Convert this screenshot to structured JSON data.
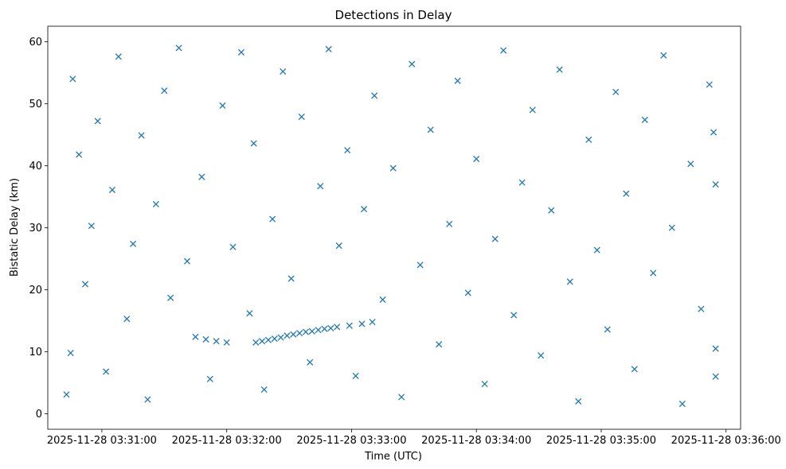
{
  "chart_data": {
    "type": "scatter",
    "title": "Detections in Delay",
    "xlabel": "Time (UTC)",
    "ylabel": "Bistatic Delay (km)",
    "x_ticks": [
      "2025-11-28 03:31:00",
      "2025-11-28 03:32:00",
      "2025-11-28 03:33:00",
      "2025-11-28 03:34:00",
      "2025-11-28 03:35:00",
      "2025-11-28 03:36:00"
    ],
    "y_ticks": [
      0,
      10,
      20,
      30,
      40,
      50,
      60
    ],
    "xlim": [
      "2025-11-28 03:30:34",
      "2025-11-28 03:36:07"
    ],
    "ylim": [
      -2.5,
      62.5
    ],
    "marker": "x",
    "grid": false,
    "series": [
      {
        "color": "#1f77b4",
        "points": [
          [
            "2025-11-28 03:30:43",
            3.1
          ],
          [
            "2025-11-28 03:30:45",
            9.8
          ],
          [
            "2025-11-28 03:30:46",
            54.0
          ],
          [
            "2025-11-28 03:30:49",
            41.8
          ],
          [
            "2025-11-28 03:30:52",
            20.9
          ],
          [
            "2025-11-28 03:30:55",
            30.3
          ],
          [
            "2025-11-28 03:30:58",
            47.2
          ],
          [
            "2025-11-28 03:31:02",
            6.8
          ],
          [
            "2025-11-28 03:31:05",
            36.1
          ],
          [
            "2025-11-28 03:31:08",
            57.6
          ],
          [
            "2025-11-28 03:31:12",
            15.3
          ],
          [
            "2025-11-28 03:31:15",
            27.4
          ],
          [
            "2025-11-28 03:31:19",
            44.9
          ],
          [
            "2025-11-28 03:31:22",
            2.3
          ],
          [
            "2025-11-28 03:31:26",
            33.8
          ],
          [
            "2025-11-28 03:31:30",
            52.1
          ],
          [
            "2025-11-28 03:31:33",
            18.7
          ],
          [
            "2025-11-28 03:31:37",
            59.0
          ],
          [
            "2025-11-28 03:31:41",
            24.6
          ],
          [
            "2025-11-28 03:31:45",
            12.4
          ],
          [
            "2025-11-28 03:31:50",
            12.0
          ],
          [
            "2025-11-28 03:31:55",
            11.7
          ],
          [
            "2025-11-28 03:32:00",
            11.5
          ],
          [
            "2025-11-28 03:31:48",
            38.2
          ],
          [
            "2025-11-28 03:31:52",
            5.6
          ],
          [
            "2025-11-28 03:31:58",
            49.7
          ],
          [
            "2025-11-28 03:32:03",
            26.9
          ],
          [
            "2025-11-28 03:32:07",
            58.3
          ],
          [
            "2025-11-28 03:32:11",
            16.2
          ],
          [
            "2025-11-28 03:32:14",
            11.5
          ],
          [
            "2025-11-28 03:32:17",
            11.7
          ],
          [
            "2025-11-28 03:32:20",
            11.9
          ],
          [
            "2025-11-28 03:32:23",
            12.1
          ],
          [
            "2025-11-28 03:32:26",
            12.3
          ],
          [
            "2025-11-28 03:32:29",
            12.6
          ],
          [
            "2025-11-28 03:32:32",
            12.8
          ],
          [
            "2025-11-28 03:32:35",
            13.0
          ],
          [
            "2025-11-28 03:32:38",
            13.2
          ],
          [
            "2025-11-28 03:32:41",
            13.3
          ],
          [
            "2025-11-28 03:32:44",
            13.5
          ],
          [
            "2025-11-28 03:32:47",
            13.7
          ],
          [
            "2025-11-28 03:32:50",
            13.8
          ],
          [
            "2025-11-28 03:32:53",
            14.0
          ],
          [
            "2025-11-28 03:32:59",
            14.2
          ],
          [
            "2025-11-28 03:33:05",
            14.5
          ],
          [
            "2025-11-28 03:33:10",
            14.8
          ],
          [
            "2025-11-28 03:32:13",
            43.6
          ],
          [
            "2025-11-28 03:32:18",
            3.9
          ],
          [
            "2025-11-28 03:32:22",
            31.4
          ],
          [
            "2025-11-28 03:32:27",
            55.2
          ],
          [
            "2025-11-28 03:32:31",
            21.8
          ],
          [
            "2025-11-28 03:32:36",
            47.9
          ],
          [
            "2025-11-28 03:32:40",
            8.3
          ],
          [
            "2025-11-28 03:32:45",
            36.7
          ],
          [
            "2025-11-28 03:32:49",
            58.8
          ],
          [
            "2025-11-28 03:32:54",
            27.1
          ],
          [
            "2025-11-28 03:32:58",
            42.5
          ],
          [
            "2025-11-28 03:33:02",
            6.1
          ],
          [
            "2025-11-28 03:33:06",
            33.0
          ],
          [
            "2025-11-28 03:33:11",
            51.3
          ],
          [
            "2025-11-28 03:33:15",
            18.4
          ],
          [
            "2025-11-28 03:33:20",
            39.6
          ],
          [
            "2025-11-28 03:33:24",
            2.7
          ],
          [
            "2025-11-28 03:33:29",
            56.4
          ],
          [
            "2025-11-28 03:33:33",
            24.0
          ],
          [
            "2025-11-28 03:33:38",
            45.8
          ],
          [
            "2025-11-28 03:33:42",
            11.2
          ],
          [
            "2025-11-28 03:33:47",
            30.6
          ],
          [
            "2025-11-28 03:33:51",
            53.7
          ],
          [
            "2025-11-28 03:33:56",
            19.5
          ],
          [
            "2025-11-28 03:34:00",
            41.1
          ],
          [
            "2025-11-28 03:34:04",
            4.8
          ],
          [
            "2025-11-28 03:34:09",
            28.2
          ],
          [
            "2025-11-28 03:34:13",
            58.6
          ],
          [
            "2025-11-28 03:34:18",
            15.9
          ],
          [
            "2025-11-28 03:34:22",
            37.3
          ],
          [
            "2025-11-28 03:34:27",
            49.0
          ],
          [
            "2025-11-28 03:34:31",
            9.4
          ],
          [
            "2025-11-28 03:34:36",
            32.8
          ],
          [
            "2025-11-28 03:34:40",
            55.5
          ],
          [
            "2025-11-28 03:34:45",
            21.3
          ],
          [
            "2025-11-28 03:34:49",
            2.0
          ],
          [
            "2025-11-28 03:34:54",
            44.2
          ],
          [
            "2025-11-28 03:34:58",
            26.4
          ],
          [
            "2025-11-28 03:35:03",
            13.6
          ],
          [
            "2025-11-28 03:35:07",
            51.9
          ],
          [
            "2025-11-28 03:35:12",
            35.5
          ],
          [
            "2025-11-28 03:35:16",
            7.2
          ],
          [
            "2025-11-28 03:35:21",
            47.4
          ],
          [
            "2025-11-28 03:35:25",
            22.7
          ],
          [
            "2025-11-28 03:35:30",
            57.8
          ],
          [
            "2025-11-28 03:35:34",
            30.0
          ],
          [
            "2025-11-28 03:35:39",
            1.6
          ],
          [
            "2025-11-28 03:35:43",
            40.3
          ],
          [
            "2025-11-28 03:35:48",
            16.9
          ],
          [
            "2025-11-28 03:35:52",
            53.1
          ],
          [
            "2025-11-28 03:35:55",
            10.5
          ],
          [
            "2025-11-28 03:35:55",
            37.0
          ],
          [
            "2025-11-28 03:35:55",
            6.0
          ],
          [
            "2025-11-28 03:35:54",
            45.4
          ]
        ]
      }
    ]
  }
}
